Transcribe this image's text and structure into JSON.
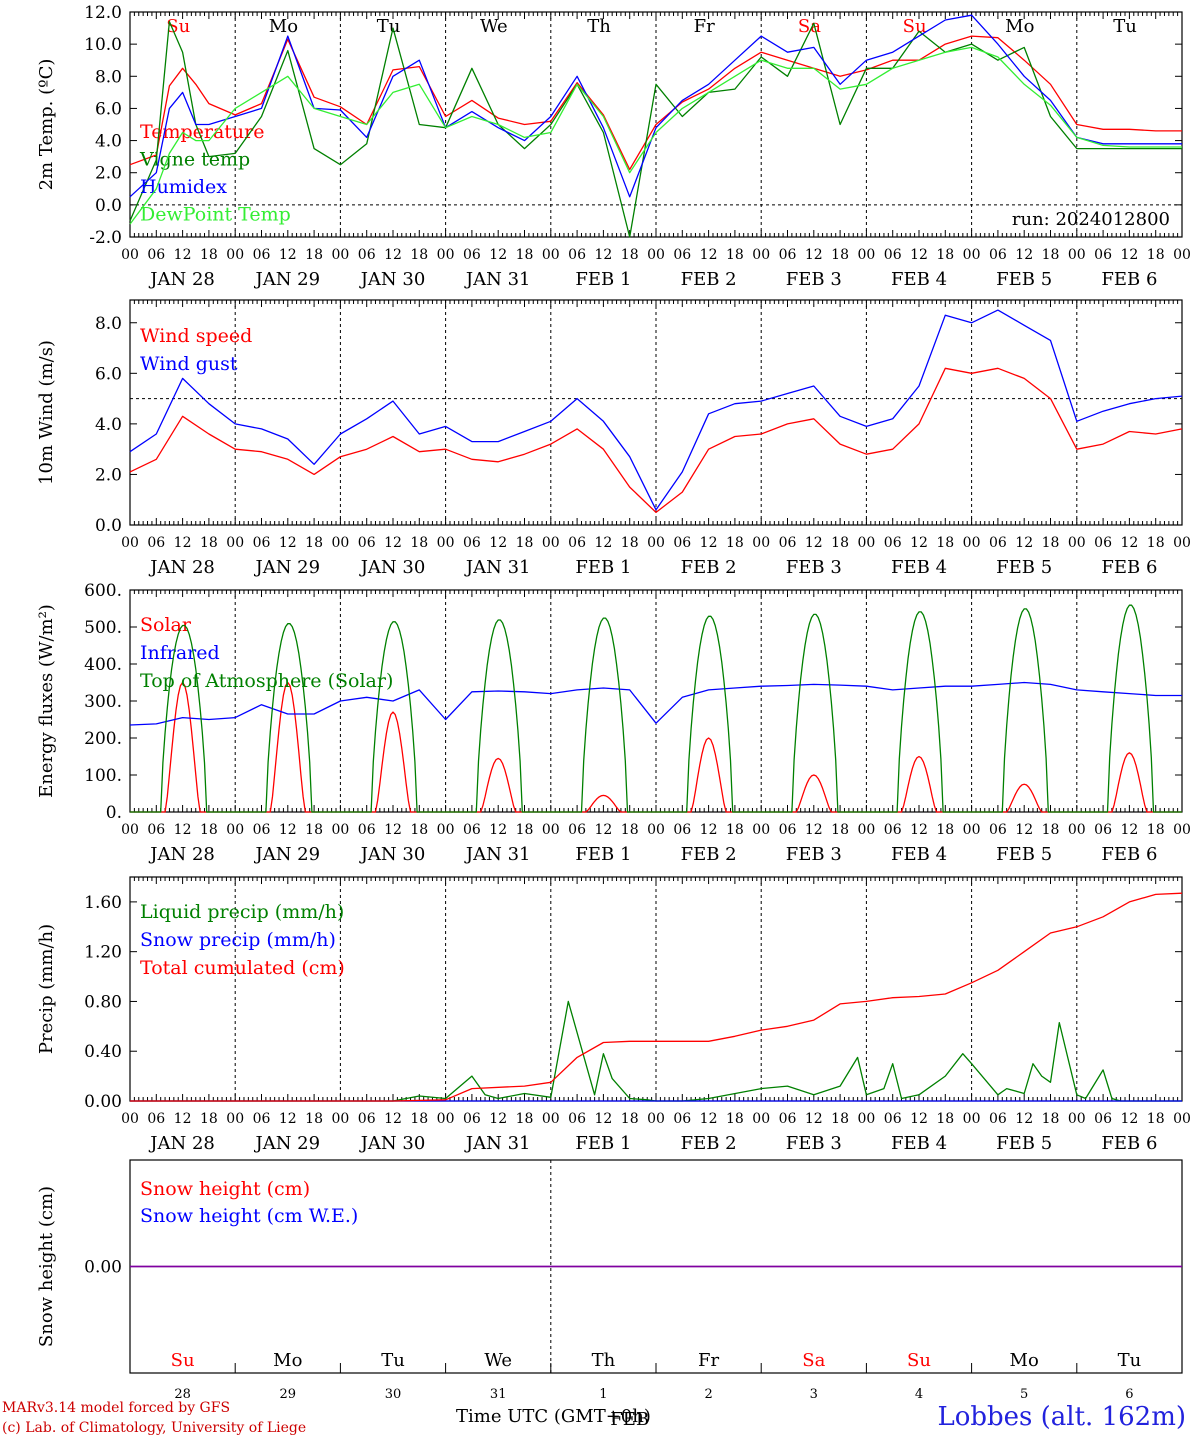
{
  "footer": {
    "model": "MARv3.14 model forced by GFS",
    "lab": "(c) Lab. of Climatology, University of Liege",
    "time_label": "Time UTC (GMT+0h)",
    "station": "Lobbes (alt. 162m)"
  },
  "axis_common": {
    "hour_labels": [
      "00",
      "06",
      "12",
      "18"
    ],
    "day_labels": [
      "JAN 28",
      "JAN 29",
      "JAN 30",
      "JAN 31",
      "FEB  1",
      "FEB  2",
      "FEB  3",
      "FEB  4",
      "FEB  5",
      "FEB  6"
    ],
    "weekdays": [
      "Su",
      "Mo",
      "Tu",
      "We",
      "Th",
      "Fr",
      "Sa",
      "Su",
      "Mo",
      "Tu"
    ],
    "weekday_colors": [
      "#ff0000",
      "#000000",
      "#000000",
      "#000000",
      "#000000",
      "#000000",
      "#ff0000",
      "#ff0000",
      "#000000",
      "#000000"
    ],
    "day_numbers": [
      "28",
      "29",
      "30",
      "31",
      "1",
      "2",
      "3",
      "4",
      "5",
      "6"
    ],
    "bottom_month": "FEB"
  },
  "colors": {
    "red": "#ff0000",
    "dark_green": "#008000",
    "blue": "#0000ff",
    "light_green": "#33ee33",
    "purple": "#8000a0"
  },
  "chart_data": [
    {
      "type": "line",
      "ylabel": "2m Temp. (ºC)",
      "ylim": [
        -2,
        12
      ],
      "yticks": [
        "-2.0",
        "0.0",
        "2.0",
        "4.0",
        "6.0",
        "8.0",
        "10.0",
        "12.0"
      ],
      "annotation": "run: 2024012800",
      "x_hours": [
        0,
        6,
        9,
        12,
        15,
        18,
        24,
        30,
        36,
        42,
        48,
        54,
        60,
        66,
        72,
        78,
        84,
        90,
        96,
        102,
        108,
        114,
        120,
        126,
        132,
        138,
        144,
        150,
        156,
        162,
        168,
        174,
        180,
        186,
        192,
        198,
        204,
        210,
        216,
        222,
        228,
        234,
        240
      ],
      "series": [
        {
          "name": "Temperature",
          "color": "#ff0000",
          "values": [
            2.5,
            3.1,
            7.4,
            8.5,
            7.5,
            6.3,
            5.6,
            6.3,
            10.3,
            6.7,
            6.1,
            5.0,
            8.4,
            8.6,
            5.5,
            6.5,
            5.4,
            5.0,
            5.2,
            7.6,
            5.6,
            2.2,
            5.0,
            6.4,
            7.2,
            8.5,
            9.5,
            9.0,
            8.5,
            8.0,
            8.4,
            9.0,
            9.0,
            10.0,
            10.5,
            10.4,
            9.0,
            7.5,
            5.0,
            4.7,
            4.7,
            4.6,
            4.6
          ]
        },
        {
          "name": "Vigne temp",
          "color": "#008000",
          "values": [
            -1.0,
            2.8,
            11.4,
            9.5,
            5.0,
            3.0,
            3.2,
            5.5,
            9.6,
            3.5,
            2.5,
            3.8,
            11.0,
            5.0,
            4.8,
            8.5,
            5.0,
            3.5,
            5.0,
            7.5,
            4.5,
            -2.0,
            7.5,
            5.5,
            7.0,
            7.2,
            9.2,
            8.0,
            11.3,
            5.0,
            8.5,
            8.5,
            10.8,
            9.5,
            10.0,
            9.0,
            9.8,
            5.5,
            3.5,
            3.5,
            3.5,
            3.5,
            3.5
          ]
        },
        {
          "name": "Humidex",
          "color": "#0000ff",
          "values": [
            0.5,
            2.0,
            6.0,
            7.0,
            5.0,
            5.0,
            5.5,
            6.0,
            10.5,
            6.0,
            5.9,
            4.2,
            8.0,
            9.0,
            4.8,
            5.8,
            4.8,
            4.0,
            5.5,
            8.0,
            4.8,
            0.5,
            4.8,
            6.5,
            7.5,
            9.0,
            10.5,
            9.5,
            9.8,
            7.5,
            9.0,
            9.5,
            10.5,
            11.5,
            11.8,
            10.0,
            8.0,
            6.5,
            4.2,
            3.8,
            3.8,
            3.8,
            3.8
          ]
        },
        {
          "name": "DewPoint Temp",
          "color": "#33ee33",
          "values": [
            -1.2,
            1.0,
            3.2,
            4.5,
            4.0,
            4.0,
            6.0,
            7.0,
            8.0,
            6.0,
            5.5,
            5.0,
            7.0,
            7.5,
            4.8,
            5.5,
            5.0,
            4.2,
            4.5,
            7.5,
            5.5,
            2.0,
            4.5,
            6.0,
            7.0,
            8.0,
            9.0,
            8.5,
            8.5,
            7.2,
            7.5,
            8.5,
            9.0,
            9.5,
            9.8,
            9.2,
            7.5,
            6.2,
            4.2,
            3.7,
            3.6,
            3.6,
            3.6
          ]
        }
      ]
    },
    {
      "type": "line",
      "ylabel": "10m Wind (m/s)",
      "ylim": [
        0,
        8.9
      ],
      "yticks": [
        "0.0",
        "2.0",
        "4.0",
        "6.0",
        "8.0"
      ],
      "x_hours": [
        0,
        6,
        12,
        18,
        24,
        30,
        36,
        42,
        48,
        54,
        60,
        66,
        72,
        78,
        84,
        90,
        96,
        102,
        108,
        114,
        120,
        126,
        132,
        138,
        144,
        150,
        156,
        162,
        168,
        174,
        180,
        186,
        192,
        198,
        204,
        210,
        216,
        222,
        228,
        234,
        240
      ],
      "series": [
        {
          "name": "Wind speed",
          "color": "#ff0000",
          "values": [
            2.1,
            2.6,
            4.3,
            3.6,
            3.0,
            2.9,
            2.6,
            2.0,
            2.7,
            3.0,
            3.5,
            2.9,
            3.0,
            2.6,
            2.5,
            2.8,
            3.2,
            3.8,
            3.0,
            1.5,
            0.5,
            1.3,
            3.0,
            3.5,
            3.6,
            4.0,
            4.2,
            3.2,
            2.8,
            3.0,
            4.0,
            6.2,
            6.0,
            6.2,
            5.8,
            5.0,
            3.0,
            3.2,
            3.7,
            3.6,
            3.8
          ]
        },
        {
          "name": "Wind gust",
          "color": "#0000ff",
          "values": [
            2.9,
            3.6,
            5.8,
            4.8,
            4.0,
            3.8,
            3.4,
            2.4,
            3.6,
            4.2,
            4.9,
            3.6,
            3.9,
            3.3,
            3.3,
            3.7,
            4.1,
            5.0,
            4.1,
            2.7,
            0.6,
            2.1,
            4.4,
            4.8,
            4.9,
            5.2,
            5.5,
            4.3,
            3.9,
            4.2,
            5.5,
            8.3,
            8.0,
            8.5,
            7.9,
            7.3,
            4.1,
            4.5,
            4.8,
            5.0,
            5.1
          ]
        }
      ]
    },
    {
      "type": "line",
      "ylabel": "Energy fluxes (W/m²)",
      "ylim": [
        0,
        600
      ],
      "yticks": [
        "0.",
        "100.",
        "200.",
        "300.",
        "400.",
        "500.",
        "600."
      ],
      "peaks": {
        "top_of_atmosphere_solar": [
          505,
          510,
          515,
          520,
          525,
          530,
          535,
          542,
          550,
          560
        ],
        "solar": [
          350,
          350,
          270,
          145,
          45,
          200,
          100,
          150,
          75,
          160
        ]
      },
      "series": [
        {
          "name": "Solar",
          "color": "#ff0000"
        },
        {
          "name": "Infrared",
          "color": "#0000ff",
          "x_hours": [
            0,
            6,
            12,
            18,
            24,
            30,
            36,
            42,
            48,
            54,
            60,
            66,
            72,
            78,
            84,
            90,
            96,
            102,
            108,
            114,
            120,
            126,
            132,
            138,
            144,
            150,
            156,
            162,
            168,
            174,
            180,
            186,
            192,
            198,
            204,
            210,
            216,
            222,
            228,
            234,
            240
          ],
          "values": [
            235,
            238,
            255,
            250,
            255,
            290,
            265,
            265,
            300,
            310,
            300,
            330,
            250,
            325,
            327,
            325,
            320,
            330,
            335,
            330,
            240,
            310,
            330,
            335,
            340,
            342,
            345,
            343,
            340,
            330,
            335,
            340,
            340,
            345,
            350,
            345,
            330,
            325,
            320,
            315,
            315
          ]
        },
        {
          "name": "Top of Atmosphere (Solar)",
          "color": "#008000"
        }
      ]
    },
    {
      "type": "line",
      "ylabel": "Precip (mm/h)",
      "ylim": [
        0,
        1.8
      ],
      "yticks": [
        "0.00",
        "0.40",
        "0.80",
        "1.20",
        "1.60"
      ],
      "series": [
        {
          "name": "Liquid precip (mm/h)",
          "color": "#008000",
          "x_hours": [
            0,
            60,
            66,
            72,
            78,
            81,
            84,
            90,
            96,
            100,
            106,
            108,
            110,
            114,
            118,
            120,
            126,
            132,
            144,
            150,
            156,
            162,
            166,
            168,
            172,
            174,
            176,
            180,
            186,
            190,
            192,
            198,
            200,
            204,
            206,
            208,
            210,
            212,
            216,
            218,
            222,
            224,
            226,
            228,
            230,
            232,
            236,
            240
          ],
          "values": [
            0,
            0,
            0.04,
            0.02,
            0.2,
            0.05,
            0.02,
            0.06,
            0.03,
            0.8,
            0.05,
            0.38,
            0.18,
            0.02,
            0.01,
            0,
            0,
            0.02,
            0.1,
            0.12,
            0.05,
            0.12,
            0.35,
            0.05,
            0.1,
            0.3,
            0.02,
            0.05,
            0.2,
            0.38,
            0.3,
            0.05,
            0.1,
            0.06,
            0.3,
            0.2,
            0.15,
            0.63,
            0.05,
            0.02,
            0.25,
            0.02,
            0,
            0,
            0,
            0,
            0,
            0
          ]
        },
        {
          "name": "Snow precip (mm/h)",
          "color": "#0000ff",
          "x_hours": [
            0,
            240
          ],
          "values": [
            0,
            0
          ]
        },
        {
          "name": "Total cumulated (cm)",
          "color": "#ff0000",
          "x_hours": [
            0,
            60,
            72,
            78,
            90,
            96,
            102,
            108,
            114,
            120,
            126,
            132,
            138,
            144,
            150,
            156,
            162,
            168,
            174,
            180,
            186,
            192,
            198,
            204,
            210,
            216,
            222,
            228,
            234,
            240
          ],
          "values": [
            0,
            0,
            0.01,
            0.1,
            0.12,
            0.15,
            0.35,
            0.47,
            0.48,
            0.48,
            0.48,
            0.48,
            0.52,
            0.57,
            0.6,
            0.65,
            0.78,
            0.8,
            0.83,
            0.84,
            0.86,
            0.95,
            1.05,
            1.2,
            1.35,
            1.4,
            1.48,
            1.6,
            1.66,
            1.67
          ]
        }
      ]
    },
    {
      "type": "line",
      "ylabel": "Snow height (cm)",
      "yticks": [
        "0.00"
      ],
      "series": [
        {
          "name": "Snow height (cm)",
          "color": "#ff0000",
          "x_hours": [
            0,
            240
          ],
          "values": [
            0,
            0
          ]
        },
        {
          "name": "Snow height (cm W.E.)",
          "color": "#0000ff",
          "x_hours": [
            0,
            240
          ],
          "values": [
            0,
            0
          ]
        }
      ]
    }
  ]
}
